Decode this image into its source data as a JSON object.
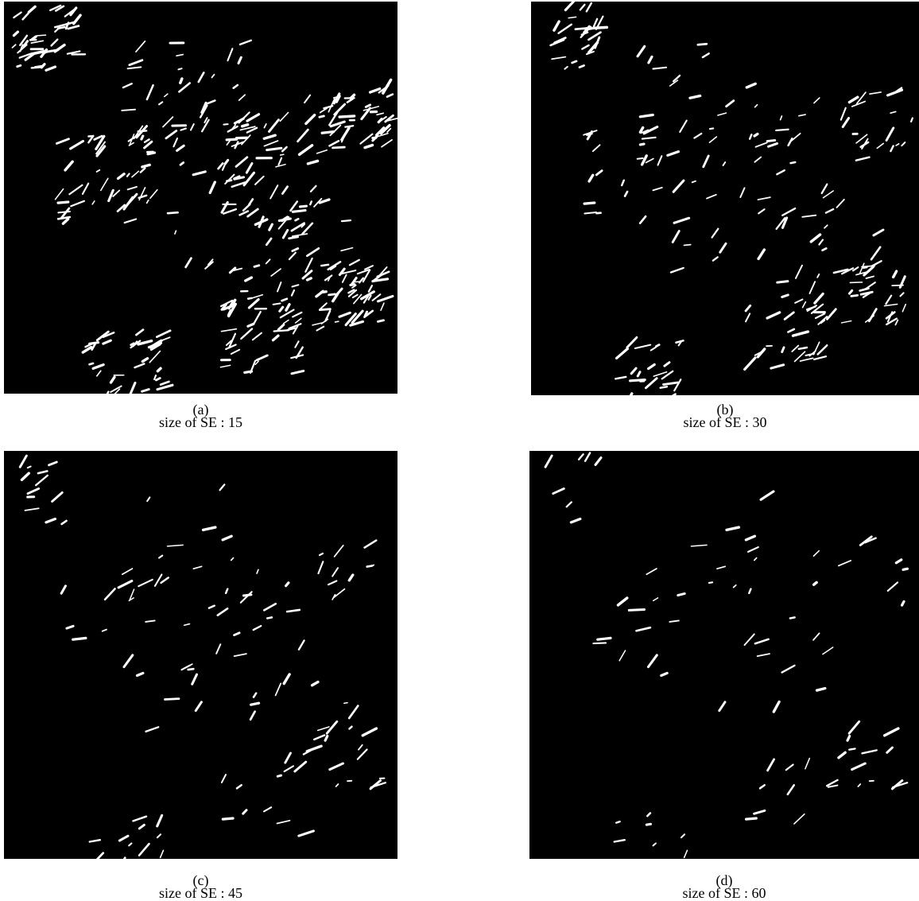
{
  "panels": [
    {
      "label": "(a)",
      "caption": "size of SE : 15"
    },
    {
      "label": "(b)",
      "caption": "size of SE : 30"
    },
    {
      "label": "(c)",
      "caption": "size of SE : 45"
    },
    {
      "label": "(d)",
      "caption": "size of SE : 60"
    }
  ]
}
